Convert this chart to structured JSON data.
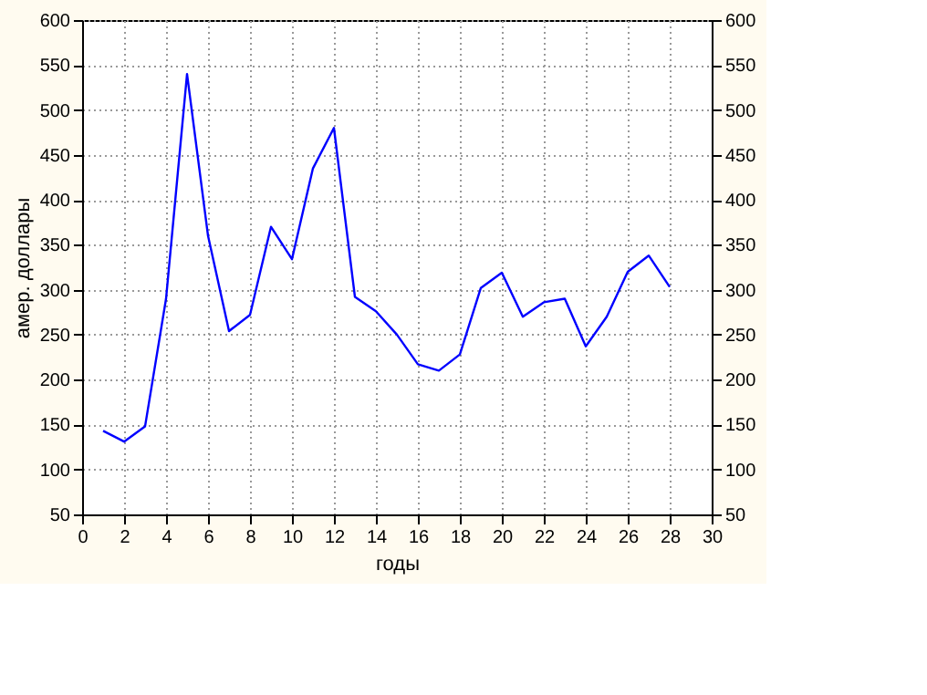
{
  "chart_data": {
    "type": "line",
    "xlabel": "годы",
    "ylabel": "амер. доллары",
    "x": [
      1,
      2,
      3,
      4,
      5,
      6,
      7,
      8,
      9,
      10,
      11,
      12,
      13,
      14,
      15,
      16,
      17,
      18,
      19,
      20,
      21,
      22,
      23,
      24,
      25,
      26,
      27,
      28
    ],
    "series": [
      {
        "color": "#0000ff",
        "values": [
          143,
          131,
          148,
          290,
          540,
          360,
          254,
          272,
          370,
          334,
          435,
          480,
          292,
          276,
          250,
          217,
          210,
          228,
          302,
          319,
          270,
          286,
          290,
          237,
          270,
          320,
          338,
          303
        ]
      }
    ],
    "xlim": [
      0,
      30
    ],
    "xticks": [
      0,
      2,
      4,
      6,
      8,
      10,
      12,
      14,
      16,
      18,
      20,
      22,
      24,
      26,
      28,
      30
    ],
    "ylim": [
      50,
      600
    ],
    "yticks": [
      50,
      100,
      150,
      200,
      250,
      300,
      350,
      400,
      450,
      500,
      550,
      600
    ],
    "y2lim": [
      50,
      600
    ],
    "y2ticks": [
      50,
      100,
      150,
      200,
      250,
      300,
      350,
      400,
      450,
      500,
      550,
      600
    ],
    "grid": true,
    "line_style": "solid",
    "marker": "none"
  }
}
